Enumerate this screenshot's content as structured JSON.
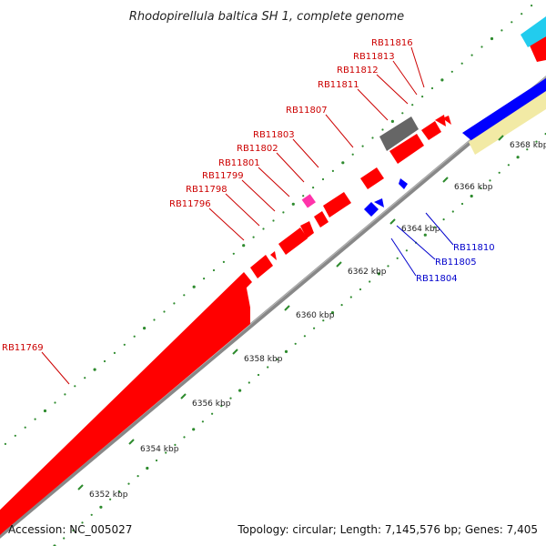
{
  "title": "Rhodopirellula baltica SH 1, complete genome",
  "accession": "Accession: NC_005027",
  "topology": "Topology: circular; Length: 7,145,576 bp; Genes: 7,405",
  "colors": {
    "forward": "#ff0000",
    "reverse": "#0000ff",
    "pink": "#ff33aa",
    "grey_gene": "#666666",
    "backbone": "#888888",
    "tick": "#2e8b2e",
    "cyan": "#22ccee",
    "cream": "#f2eaa5"
  },
  "ticks": [
    {
      "label": "6352 kbp"
    },
    {
      "label": "6354 kbp"
    },
    {
      "label": "6356 kbp"
    },
    {
      "label": "6358 kbp"
    },
    {
      "label": "6360 kbp"
    },
    {
      "label": "6362 kbp"
    },
    {
      "label": "6364 kbp"
    },
    {
      "label": "6366 kbp"
    },
    {
      "label": "6368 kbp"
    }
  ],
  "top_labels": [
    {
      "text": "RB11769"
    },
    {
      "text": "RB11796"
    },
    {
      "text": "RB11798"
    },
    {
      "text": "RB11799"
    },
    {
      "text": "RB11801"
    },
    {
      "text": "RB11802"
    },
    {
      "text": "RB11803"
    },
    {
      "text": "RB11807"
    },
    {
      "text": "RB11811"
    },
    {
      "text": "RB11812"
    },
    {
      "text": "RB11813"
    },
    {
      "text": "RB11816"
    }
  ],
  "bottom_labels": [
    {
      "text": "RB11810"
    },
    {
      "text": "RB11805"
    },
    {
      "text": "RB11804"
    }
  ]
}
